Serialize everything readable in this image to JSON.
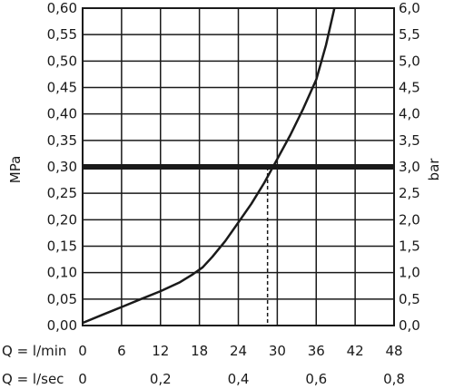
{
  "chart_data": {
    "type": "line",
    "title": "",
    "ylabel": "MPa",
    "y2label": "bar",
    "xlabel_primary": "Q = l/min",
    "xlabel_secondary": "Q = l/sec",
    "xlim": [
      0,
      48
    ],
    "ylim": [
      0,
      0.6
    ],
    "y2lim": [
      0,
      6
    ],
    "grid": true,
    "x_ticks": [
      "0",
      "6",
      "12",
      "18",
      "24",
      "30",
      "36",
      "42",
      "48"
    ],
    "x_tick_values": [
      0,
      6,
      12,
      18,
      24,
      30,
      36,
      42,
      48
    ],
    "x2_ticks": [
      "0",
      "0,2",
      "0,4",
      "0,6",
      "0,8"
    ],
    "x2_tick_values": [
      0,
      12,
      24,
      36,
      48
    ],
    "y_ticks": [
      "0,00",
      "0,05",
      "0,10",
      "0,15",
      "0,20",
      "0,25",
      "0,30",
      "0,35",
      "0,40",
      "0,45",
      "0,50",
      "0,55",
      "0,60"
    ],
    "y_tick_values": [
      0,
      0.05,
      0.1,
      0.15,
      0.2,
      0.25,
      0.3,
      0.35,
      0.4,
      0.45,
      0.5,
      0.55,
      0.6
    ],
    "y2_ticks": [
      "0,0",
      "0,5",
      "1,0",
      "1,5",
      "2,0",
      "2,5",
      "3,0",
      "3,5",
      "4,0",
      "4,5",
      "5,0",
      "5,5",
      "6,0"
    ],
    "series": [
      {
        "x": [
          0,
          3,
          6,
          9,
          12,
          15,
          17,
          18.5,
          20,
          22,
          24,
          26,
          28,
          30,
          32,
          34,
          36,
          37.5,
          38.8
        ],
        "y": [
          0.005,
          0.02,
          0.035,
          0.05,
          0.065,
          0.082,
          0.097,
          0.11,
          0.13,
          0.16,
          0.195,
          0.23,
          0.27,
          0.315,
          0.36,
          0.41,
          0.465,
          0.53,
          0.6
        ]
      }
    ],
    "reference_line": {
      "y": 0.3
    },
    "reference_drop": {
      "x": 28.5,
      "y": 0.3
    }
  }
}
